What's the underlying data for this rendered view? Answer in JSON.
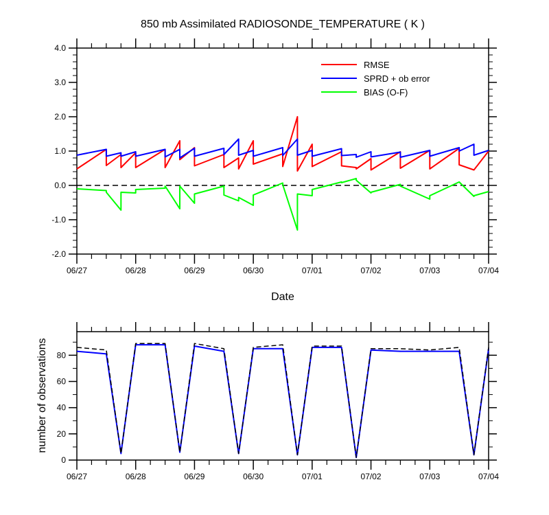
{
  "chart_data": [
    {
      "type": "line",
      "title": "850 mb Assimilated RADIOSONDE_TEMPERATURE ( K )",
      "xlabel": "Date",
      "ylabel": "",
      "xlim": [
        0,
        7
      ],
      "ylim": [
        -2.0,
        4.0
      ],
      "x_tick_labels": [
        "06/27",
        "06/28",
        "06/29",
        "06/30",
        "07/01",
        "07/02",
        "07/03",
        "07/04"
      ],
      "y_tick_labels": [
        "4.0",
        "3.0",
        "2.0",
        "1.0",
        "0.0",
        "-1.0",
        "-2.0"
      ],
      "y_ticks": [
        4.0,
        3.0,
        2.0,
        1.0,
        0.0,
        -1.0,
        -2.0
      ],
      "reference_line": {
        "y": 0.0,
        "style": "dashed"
      },
      "legend_position": "top-right",
      "series": [
        {
          "name": "RMSE",
          "color": "#ff0000",
          "x": [
            0,
            0.5,
            0.5,
            0.75,
            0.75,
            1.0,
            1.0,
            1.5,
            1.5,
            1.75,
            1.75,
            2.0,
            2.0,
            2.5,
            2.5,
            2.75,
            2.75,
            3.0,
            3.0,
            3.5,
            3.5,
            3.75,
            3.75,
            4.0,
            4.0,
            4.5,
            4.5,
            4.75,
            4.75,
            5.0,
            5.0,
            5.5,
            5.5,
            6.0,
            6.0,
            6.5,
            6.5,
            6.75,
            6.75,
            7.0
          ],
          "y": [
            0.48,
            1.05,
            0.58,
            0.9,
            0.52,
            0.95,
            0.52,
            1.05,
            0.52,
            1.3,
            0.75,
            1.1,
            0.57,
            0.9,
            0.52,
            0.8,
            0.48,
            1.3,
            0.62,
            0.92,
            0.55,
            2.0,
            0.42,
            1.2,
            0.55,
            0.98,
            0.57,
            0.52,
            0.48,
            0.78,
            0.45,
            0.98,
            0.5,
            1.02,
            0.48,
            1.08,
            0.6,
            0.45,
            0.45,
            1.0
          ]
        },
        {
          "name": "SPRD + ob error",
          "color": "#0000ff",
          "x": [
            0,
            0.5,
            0.5,
            0.75,
            0.75,
            1.0,
            1.0,
            1.5,
            1.5,
            1.75,
            1.75,
            2.0,
            2.0,
            2.5,
            2.5,
            2.75,
            2.75,
            3.0,
            3.0,
            3.5,
            3.5,
            3.75,
            3.75,
            4.0,
            4.0,
            4.5,
            4.5,
            4.75,
            4.75,
            5.0,
            5.0,
            5.5,
            5.5,
            6.0,
            6.0,
            6.5,
            6.5,
            6.75,
            6.75,
            7.0
          ],
          "y": [
            0.88,
            1.05,
            0.85,
            0.95,
            0.85,
            0.98,
            0.85,
            1.05,
            0.83,
            1.05,
            0.8,
            1.08,
            0.85,
            1.08,
            0.9,
            1.35,
            0.88,
            1.02,
            0.85,
            1.1,
            0.87,
            1.35,
            0.88,
            1.02,
            0.85,
            1.07,
            0.87,
            0.9,
            0.82,
            0.98,
            0.83,
            0.97,
            0.82,
            1.02,
            0.85,
            1.1,
            1.0,
            1.2,
            0.88,
            1.02
          ]
        },
        {
          "name": "BIAS (O-F)",
          "color": "#00ff00",
          "x": [
            0,
            0.5,
            0.5,
            0.75,
            0.75,
            1.0,
            1.0,
            1.5,
            1.5,
            1.75,
            1.75,
            2.0,
            2.0,
            2.5,
            2.5,
            2.75,
            2.75,
            3.0,
            3.0,
            3.5,
            3.5,
            3.75,
            3.75,
            4.0,
            4.0,
            4.5,
            4.5,
            4.75,
            4.75,
            5.0,
            5.0,
            5.5,
            5.5,
            6.0,
            6.0,
            6.5,
            6.5,
            6.75,
            6.75,
            7.0
          ],
          "y": [
            -0.1,
            -0.15,
            -0.2,
            -0.72,
            -0.2,
            -0.22,
            -0.12,
            -0.08,
            -0.02,
            -0.68,
            -0.02,
            -0.52,
            -0.25,
            -0.02,
            -0.28,
            -0.45,
            -0.35,
            -0.58,
            -0.28,
            0.07,
            0.02,
            -1.3,
            -0.25,
            -0.3,
            -0.12,
            0.1,
            0.08,
            0.2,
            0.15,
            -0.22,
            -0.2,
            0.03,
            -0.02,
            -0.4,
            -0.3,
            0.1,
            0.1,
            -0.32,
            -0.3,
            -0.18
          ]
        }
      ]
    },
    {
      "type": "line",
      "title": "",
      "xlabel": "",
      "ylabel": "number of observations",
      "xlim": [
        0,
        7
      ],
      "ylim": [
        0,
        98
      ],
      "x_tick_labels": [
        "06/27",
        "06/28",
        "06/29",
        "06/30",
        "07/01",
        "07/02",
        "07/03",
        "07/04"
      ],
      "y_tick_labels": [
        "80",
        "60",
        "40",
        "20",
        "0"
      ],
      "y_ticks": [
        80,
        60,
        40,
        20,
        0
      ],
      "series": [
        {
          "color": "#0000ff",
          "style": "solid",
          "x": [
            0,
            0.5,
            0.75,
            1.0,
            1.5,
            1.75,
            2.0,
            2.5,
            2.75,
            3.0,
            3.5,
            3.75,
            4.0,
            4.5,
            4.75,
            5.0,
            5.5,
            6.0,
            6.5,
            6.75,
            7.0
          ],
          "y": [
            83,
            81,
            5,
            88,
            88,
            6,
            87,
            83,
            5,
            85,
            85,
            4,
            86,
            86,
            2,
            84,
            83,
            83,
            83,
            4,
            85
          ]
        },
        {
          "color": "#000000",
          "style": "dashed",
          "x": [
            0,
            0.5,
            0.75,
            1.0,
            1.5,
            1.75,
            2.0,
            2.5,
            2.75,
            3.0,
            3.5,
            3.75,
            4.0,
            4.5,
            4.75,
            5.0,
            5.5,
            6.0,
            6.5,
            6.75,
            7.0
          ],
          "y": [
            86,
            84,
            5,
            89,
            89,
            6,
            89,
            85,
            5,
            86,
            88,
            4,
            87,
            87,
            2,
            85,
            85,
            84,
            86,
            4,
            86
          ]
        }
      ]
    }
  ]
}
